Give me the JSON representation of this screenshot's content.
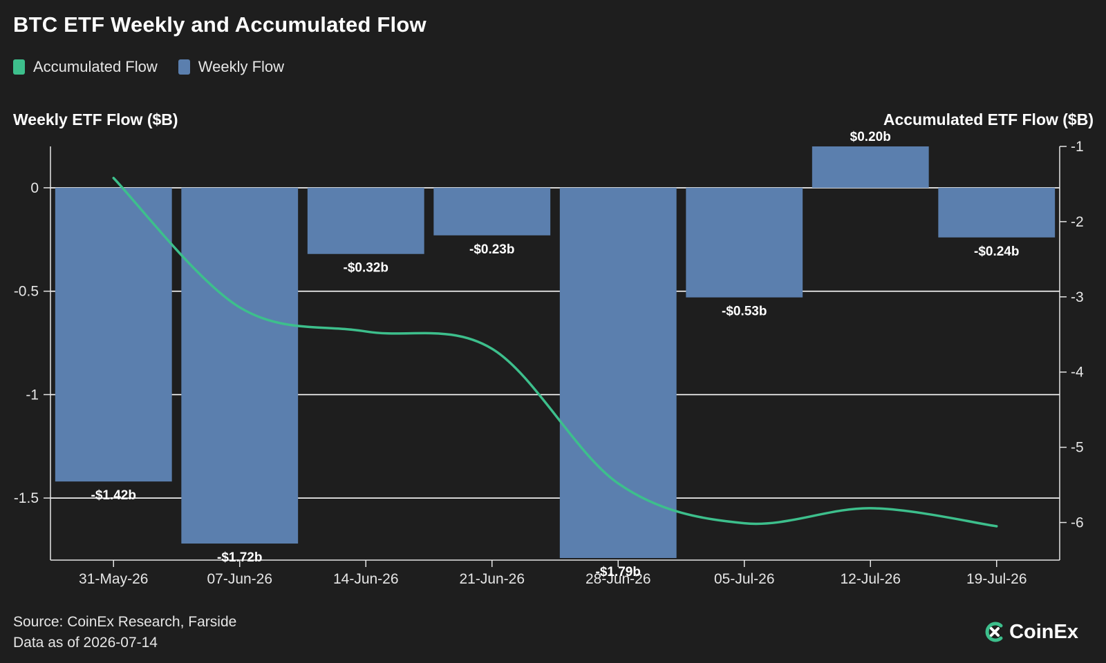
{
  "title": "BTC ETF Weekly and Accumulated Flow",
  "legend": {
    "accumulated_label": "Accumulated Flow",
    "weekly_label": "Weekly Flow"
  },
  "footer": {
    "source": "Source: CoinEx Research, Farside",
    "asof": "Data as of 2026-07-14"
  },
  "brand": {
    "name": "CoinEx"
  },
  "colors": {
    "background": "#1e1e1e",
    "bar": "#5b7fae",
    "line": "#3dbf8c",
    "grid": "#ffffff",
    "text": "#ffffff"
  },
  "chart_data": {
    "type": "bar",
    "title": "BTC ETF Weekly and Accumulated Flow",
    "categories": [
      "31-May-26",
      "07-Jun-26",
      "14-Jun-26",
      "21-Jun-26",
      "28-Jun-26",
      "05-Jul-26",
      "12-Jul-26",
      "19-Jul-26"
    ],
    "series": [
      {
        "name": "Weekly Flow",
        "type": "bar",
        "axis": "left",
        "values": [
          -1.42,
          -1.72,
          -0.32,
          -0.23,
          -1.79,
          -0.53,
          0.2,
          -0.24
        ],
        "labels": [
          "-$1.42b",
          "-$1.72b",
          "-$0.32b",
          "-$0.23b",
          "-$1.79b",
          "-$0.53b",
          "$0.20b",
          "-$0.24b"
        ]
      },
      {
        "name": "Accumulated Flow",
        "type": "line",
        "axis": "right",
        "values": [
          -1.42,
          -3.14,
          -3.46,
          -3.69,
          -5.48,
          -6.01,
          -5.81,
          -6.05
        ]
      }
    ],
    "ylabel": "Weekly ETF Flow ($B)",
    "y2label": "Accumulated ETF Flow ($B)",
    "ylim": [
      -1.8,
      0.2
    ],
    "y2lim": [
      -6.5,
      -1
    ],
    "yticks": [
      "0",
      "-0.5",
      "-1",
      "-1.5"
    ],
    "y2ticks": [
      "-1",
      "-2",
      "-3",
      "-4",
      "-5",
      "-6"
    ],
    "grid": true,
    "legend_position": "top-left"
  }
}
